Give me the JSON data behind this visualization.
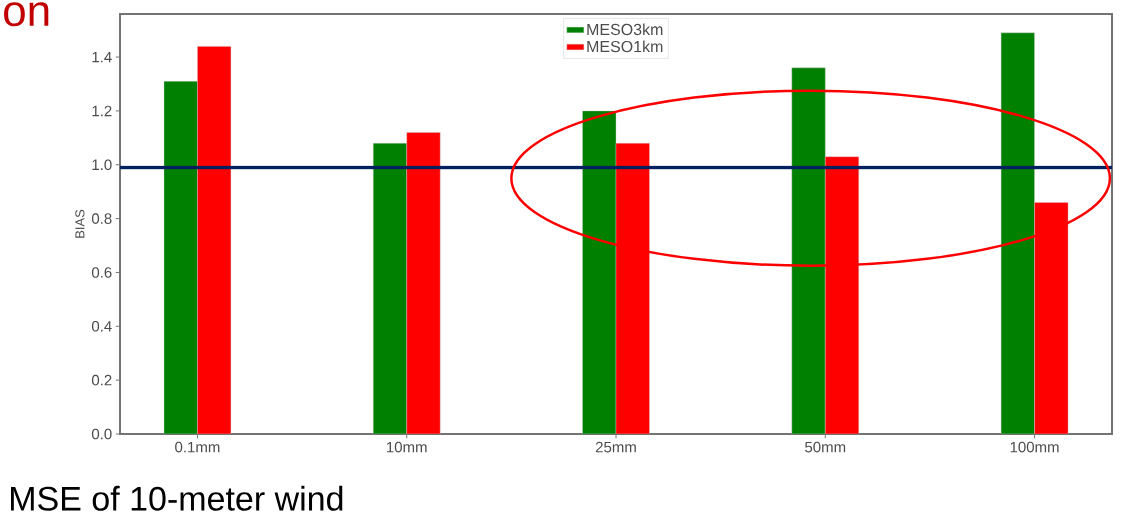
{
  "chart_data": {
    "type": "bar",
    "title": "on",
    "ylabel": "BIAS",
    "annotations": [
      "MSE of 10-meter wind"
    ],
    "categories": [
      "0.1mm",
      "10mm",
      "25mm",
      "50mm",
      "100mm"
    ],
    "series": [
      {
        "name": "MESO3km",
        "color": "#008000",
        "values": [
          1.31,
          1.08,
          1.2,
          1.36,
          1.49
        ]
      },
      {
        "name": "MESO1km",
        "color": "#ff0000",
        "values": [
          1.44,
          1.12,
          1.08,
          1.03,
          0.86
        ]
      }
    ],
    "ylim": [
      0,
      1.56
    ],
    "yticks": [
      {
        "value": 0,
        "label": "0.0"
      },
      {
        "value": 0.2,
        "label": "0.2"
      },
      {
        "value": 0.4,
        "label": "0.4"
      },
      {
        "value": 0.6,
        "label": "0.6"
      },
      {
        "value": 0.8,
        "label": "0.8"
      },
      {
        "value": 1.0,
        "label": "1.0"
      },
      {
        "value": 1.2,
        "label": "1.2"
      },
      {
        "value": 1.4,
        "label": "1.4"
      }
    ],
    "ref_lines": [
      {
        "axis": "y",
        "value": 0.99,
        "color": "#002060"
      }
    ],
    "legend": "top",
    "grid": false
  }
}
